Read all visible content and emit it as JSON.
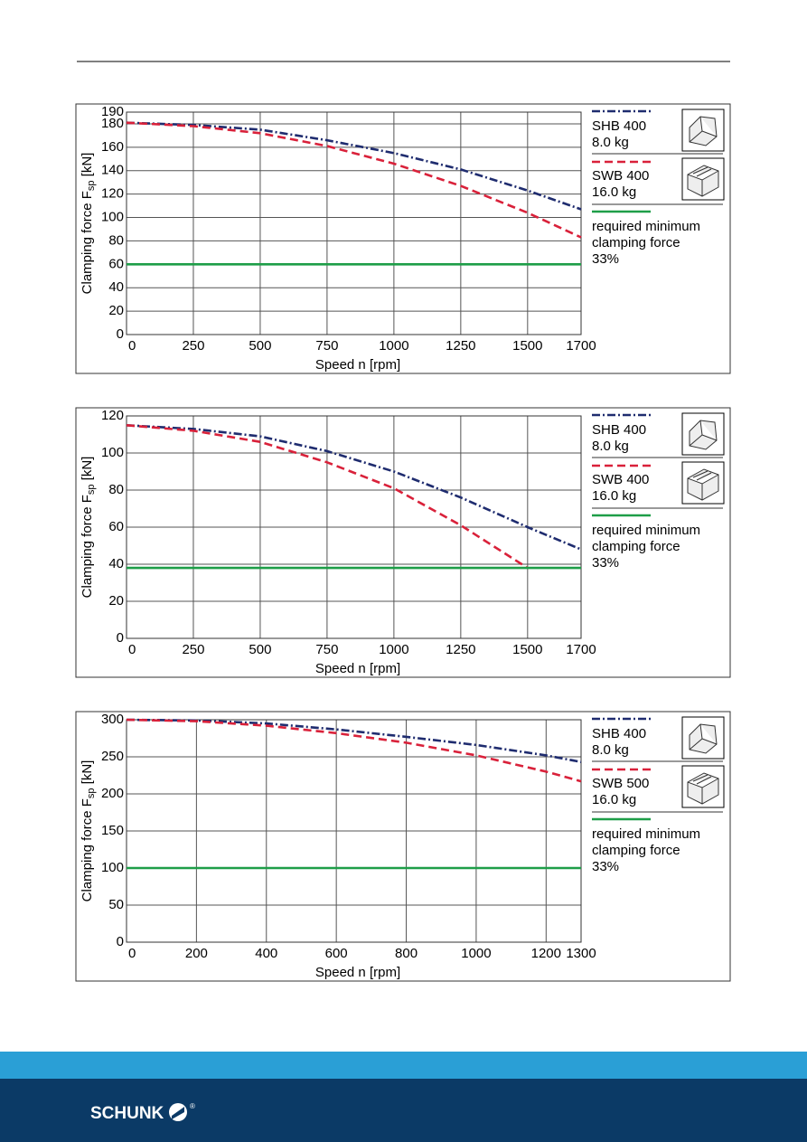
{
  "header": {},
  "chart_data": [
    {
      "type": "line",
      "ylabel": {
        "main": "Clamping force F",
        "sub": "sp",
        "unit": " [kN]"
      },
      "xlabel": "Speed n [rpm]",
      "xlim": [
        0,
        1700
      ],
      "xticks": [
        0,
        250,
        500,
        750,
        1000,
        1250,
        1500,
        1700
      ],
      "ylim": [
        0,
        190
      ],
      "yticks": [
        0,
        20,
        40,
        60,
        80,
        100,
        120,
        140,
        160,
        180,
        190
      ],
      "grid": true,
      "series": [
        {
          "label_lines": [
            "SHB 400",
            "8.0 kg"
          ],
          "color": "#1f2c6f",
          "style": "dashdot",
          "x": [
            0,
            250,
            500,
            750,
            1000,
            1250,
            1500,
            1700
          ],
          "values": [
            181,
            179,
            175,
            166,
            155,
            141,
            123,
            107
          ]
        },
        {
          "label_lines": [
            "SWB 400",
            "16.0 kg"
          ],
          "color": "#d9213a",
          "style": "dash",
          "x": [
            0,
            250,
            500,
            750,
            1000,
            1250,
            1500,
            1700
          ],
          "values": [
            181,
            178,
            172,
            161,
            146,
            127,
            104,
            83
          ]
        },
        {
          "label_lines": [
            "required minimum",
            "clamping force",
            "33%"
          ],
          "color": "#1e9e48",
          "style": "solid",
          "x": [
            0,
            1700
          ],
          "values": [
            60,
            60
          ]
        }
      ]
    },
    {
      "type": "line",
      "ylabel": {
        "main": "Clamping force F",
        "sub": "sp",
        "unit": " [kN]"
      },
      "xlabel": "Speed n [rpm]",
      "xlim": [
        0,
        1700
      ],
      "xticks": [
        0,
        250,
        500,
        750,
        1000,
        1250,
        1500,
        1700
      ],
      "ylim": [
        0,
        120
      ],
      "yticks": [
        0,
        20,
        40,
        60,
        80,
        100,
        120
      ],
      "grid": true,
      "series": [
        {
          "label_lines": [
            "SHB 400",
            "8.0 kg"
          ],
          "color": "#1f2c6f",
          "style": "dashdot",
          "x": [
            0,
            250,
            500,
            750,
            1000,
            1250,
            1500,
            1700
          ],
          "values": [
            115,
            113,
            109,
            101,
            90,
            76,
            60,
            48
          ]
        },
        {
          "label_lines": [
            "SWB 400",
            "16.0 kg"
          ],
          "color": "#d9213a",
          "style": "dash",
          "x": [
            0,
            250,
            500,
            750,
            1000,
            1250,
            1500
          ],
          "values": [
            115,
            112,
            106,
            95,
            81,
            61,
            38
          ]
        },
        {
          "label_lines": [
            "required minimum",
            "clamping force",
            "33%"
          ],
          "color": "#1e9e48",
          "style": "solid",
          "x": [
            0,
            1700
          ],
          "values": [
            38,
            38
          ]
        }
      ]
    },
    {
      "type": "line",
      "ylabel": {
        "main": "Clamping force F",
        "sub": "sp",
        "unit": " [kN]"
      },
      "xlabel": "Speed n [rpm]",
      "xlim": [
        0,
        1300
      ],
      "xticks": [
        0,
        200,
        400,
        600,
        800,
        1000,
        1200,
        1300
      ],
      "ylim": [
        0,
        300
      ],
      "yticks": [
        0,
        50,
        100,
        150,
        200,
        250,
        300
      ],
      "grid": true,
      "series": [
        {
          "label_lines": [
            "SHB 400",
            "8.0 kg"
          ],
          "color": "#1f2c6f",
          "style": "dashdot",
          "x": [
            0,
            200,
            400,
            600,
            800,
            1000,
            1200,
            1300
          ],
          "values": [
            300,
            299,
            295,
            287,
            277,
            266,
            252,
            243
          ]
        },
        {
          "label_lines": [
            "SWB 500",
            "16.0 kg"
          ],
          "color": "#d9213a",
          "style": "dash",
          "x": [
            0,
            200,
            400,
            600,
            800,
            1000,
            1200,
            1300
          ],
          "values": [
            300,
            298,
            292,
            282,
            269,
            252,
            230,
            217
          ]
        },
        {
          "label_lines": [
            "required minimum",
            "clamping force",
            "33%"
          ],
          "color": "#1e9e48",
          "style": "solid",
          "x": [
            0,
            1300
          ],
          "values": [
            100,
            100
          ]
        }
      ]
    }
  ],
  "footer": {
    "brand": "SCHUNK",
    "mark": "®"
  }
}
